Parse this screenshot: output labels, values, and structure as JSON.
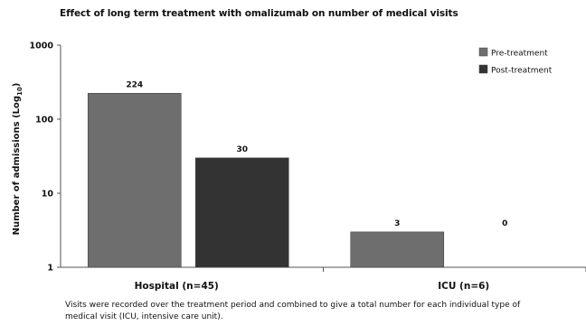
{
  "chart_data": {
    "type": "bar",
    "title": "Effect of long term treatment with omalizumab on number of medical visits",
    "xlabel": "",
    "ylabel": {
      "main": "Number of admissions (Log",
      "sub": "10",
      "close": ")"
    },
    "yscale": "log",
    "ylim": [
      1,
      1000
    ],
    "yticks": [
      "1",
      "10",
      "100",
      "1000"
    ],
    "grid": false,
    "legend_position": "top-right",
    "categories": [
      "Hospital  (n=45)",
      "ICU (n=6)"
    ],
    "series": [
      {
        "name": "Pre-treatment",
        "values": [
          224,
          3
        ],
        "labels": [
          "224",
          "3"
        ],
        "color": "#6e6e6e"
      },
      {
        "name": "Post-treatment",
        "values": [
          30,
          0
        ],
        "labels": [
          "30",
          "0"
        ],
        "color": "#333333"
      }
    ]
  },
  "footnote": {
    "line1": "Visits were recorded over the treatment period and combined to give a total number for each individual type of",
    "line2": "medical visit (ICU, intensive care unit)."
  }
}
